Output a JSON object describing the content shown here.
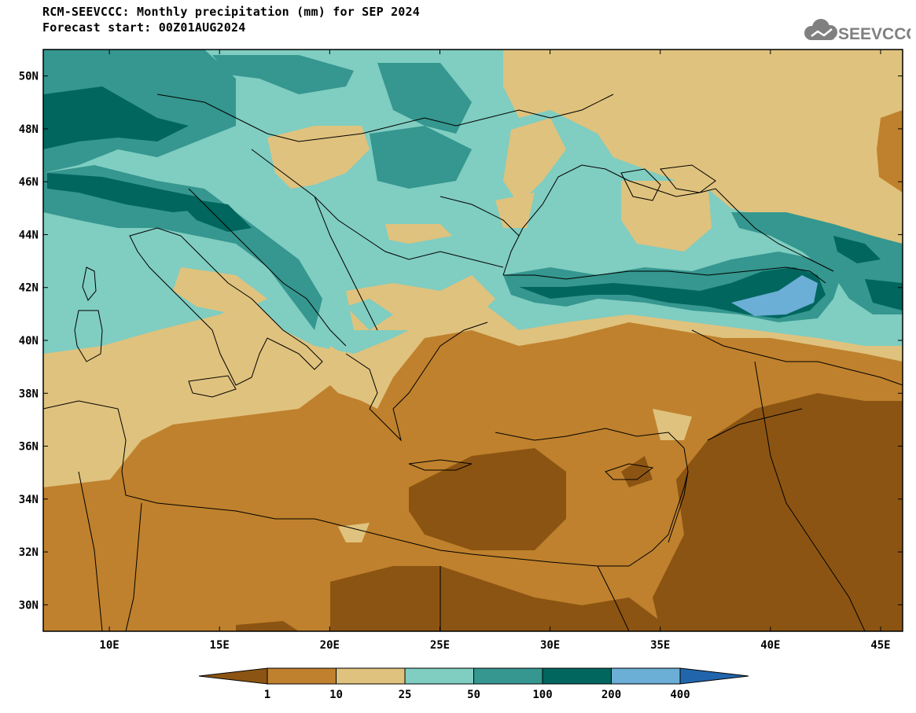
{
  "title_line1": "RCM-SEEVCCC: Monthly precipitation (mm) for SEP 2024",
  "title_line2": "Forecast start: 00Z01AUG2024",
  "logo_text": "SEEVCCC",
  "map": {
    "lon_range": [
      7,
      46
    ],
    "lat_range": [
      29,
      51
    ],
    "lat_ticks": [
      "50N",
      "48N",
      "46N",
      "44N",
      "42N",
      "40N",
      "38N",
      "36N",
      "34N",
      "32N",
      "30N"
    ],
    "lon_ticks": [
      "10E",
      "15E",
      "20E",
      "25E",
      "30E",
      "35E",
      "40E",
      "45E"
    ]
  },
  "colorbar": {
    "labels": [
      "1",
      "10",
      "25",
      "50",
      "100",
      "200",
      "400"
    ],
    "colors": [
      "#8c5412",
      "#bf812d",
      "#dfc27d",
      "#80cdc1",
      "#35978f",
      "#01665e",
      "#6baed6",
      "#2166ac"
    ]
  }
}
